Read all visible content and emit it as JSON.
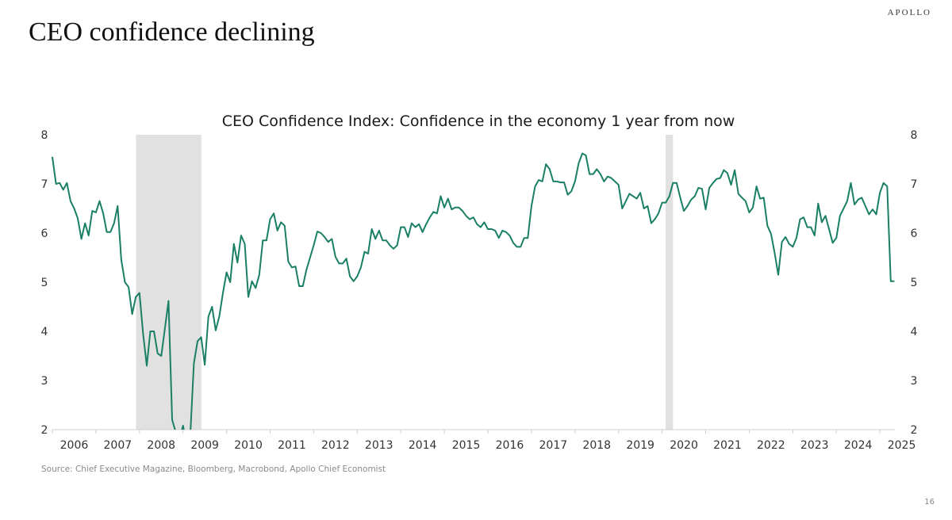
{
  "brand": "APOLLO",
  "slide_title": "CEO confidence declining",
  "source": "Source: Chief Executive Magazine, Bloomberg, Macrobond, Apollo Chief Economist",
  "page_number": "16",
  "colors": {
    "line": "#1a7f64",
    "recession": "#e0e1e0",
    "axis": "#cfcfcf"
  },
  "chart_data": {
    "type": "line",
    "title": "CEO Confidence Index: Confidence in the economy 1 year from now",
    "xlabel": "",
    "ylabel": "",
    "ylim": [
      2,
      8
    ],
    "yticks": [
      2,
      3,
      4,
      5,
      6,
      7,
      8
    ],
    "y_axes": "left and right (mirrored)",
    "xlim": [
      2006.0,
      2025.2
    ],
    "xtick_labels": [
      "2006",
      "2007",
      "2008",
      "2009",
      "2010",
      "2011",
      "2012",
      "2013",
      "2014",
      "2015",
      "2016",
      "2017",
      "2018",
      "2019",
      "2020",
      "2021",
      "2022",
      "2023",
      "2024",
      "2025"
    ],
    "grid": false,
    "legend": "none",
    "recessions": [
      {
        "start": 2007.92,
        "end": 2009.42
      },
      {
        "start": 2020.08,
        "end": 2020.25
      }
    ],
    "series": [
      {
        "name": "CEO Confidence Index",
        "frequency": "monthly",
        "start": "2006-01",
        "values": [
          7.55,
          7.0,
          7.02,
          6.88,
          7.02,
          6.65,
          6.5,
          6.3,
          5.88,
          6.2,
          5.95,
          6.45,
          6.42,
          6.65,
          6.4,
          6.02,
          6.02,
          6.2,
          6.55,
          5.45,
          5.0,
          4.9,
          4.35,
          4.7,
          4.78,
          3.95,
          3.3,
          4.0,
          4.0,
          3.55,
          3.5,
          4.05,
          4.62,
          2.2,
          1.95,
          1.8,
          2.08,
          1.7,
          1.9,
          3.35,
          3.8,
          3.88,
          3.32,
          4.3,
          4.5,
          4.02,
          4.3,
          4.78,
          5.2,
          5.0,
          5.78,
          5.4,
          5.95,
          5.78,
          4.7,
          5.02,
          4.88,
          5.15,
          5.85,
          5.85,
          6.28,
          6.4,
          6.05,
          6.22,
          6.15,
          5.42,
          5.3,
          5.32,
          4.92,
          4.92,
          5.25,
          5.5,
          5.75,
          6.03,
          6.0,
          5.92,
          5.82,
          5.88,
          5.52,
          5.38,
          5.38,
          5.48,
          5.12,
          5.02,
          5.12,
          5.3,
          5.62,
          5.58,
          6.08,
          5.88,
          6.05,
          5.85,
          5.85,
          5.75,
          5.68,
          5.75,
          6.12,
          6.12,
          5.92,
          6.2,
          6.12,
          6.18,
          6.02,
          6.18,
          6.32,
          6.43,
          6.4,
          6.75,
          6.52,
          6.7,
          6.48,
          6.52,
          6.52,
          6.45,
          6.35,
          6.28,
          6.32,
          6.18,
          6.12,
          6.22,
          6.08,
          6.08,
          6.05,
          5.9,
          6.05,
          6.02,
          5.95,
          5.8,
          5.72,
          5.72,
          5.9,
          5.9,
          6.55,
          6.95,
          7.08,
          7.05,
          7.4,
          7.3,
          7.05,
          7.05,
          7.03,
          7.03,
          6.78,
          6.85,
          7.05,
          7.42,
          7.62,
          7.58,
          7.2,
          7.2,
          7.3,
          7.2,
          7.05,
          7.15,
          7.12,
          7.05,
          6.98,
          6.5,
          6.65,
          6.8,
          6.75,
          6.7,
          6.82,
          6.5,
          6.55,
          6.2,
          6.28,
          6.4,
          6.62,
          6.62,
          6.75,
          7.02,
          7.02,
          6.72,
          6.45,
          6.55,
          6.68,
          6.75,
          6.92,
          6.9,
          6.48,
          6.92,
          7.02,
          7.1,
          7.12,
          7.28,
          7.22,
          6.98,
          7.28,
          6.8,
          6.72,
          6.65,
          6.42,
          6.52,
          6.95,
          6.7,
          6.72,
          6.15,
          5.98,
          5.6,
          5.15,
          5.82,
          5.92,
          5.78,
          5.72,
          5.9,
          6.28,
          6.32,
          6.12,
          6.12,
          5.95,
          6.6,
          6.22,
          6.35,
          6.08,
          5.8,
          5.9,
          6.35,
          6.5,
          6.65,
          7.02,
          6.58,
          6.68,
          6.72,
          6.55,
          6.38,
          6.48,
          6.38,
          6.82,
          7.02,
          6.95,
          5.02,
          5.02
        ]
      }
    ]
  }
}
